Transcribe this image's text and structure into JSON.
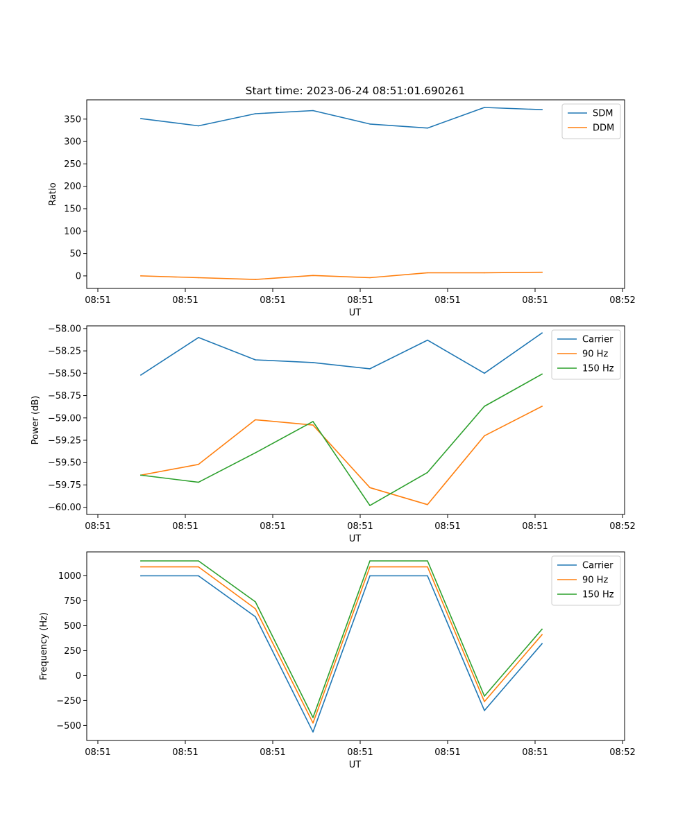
{
  "figure": {
    "title": "Start time: 2023-06-24 08:51:01.690261"
  },
  "chart_data": [
    {
      "type": "line",
      "title": "Start time: 2023-06-24 08:51:01.690261",
      "xlabel": "UT",
      "ylabel": "Ratio",
      "x_tick_labels": [
        "08:51",
        "08:51",
        "08:51",
        "08:51",
        "08:51",
        "08:51",
        "08:52"
      ],
      "y_ticks": [
        0,
        50,
        100,
        150,
        200,
        250,
        300,
        350
      ],
      "ylim": [
        -28,
        393
      ],
      "legend_position": "top-right",
      "series": [
        {
          "name": "SDM",
          "color": "#1f77b4",
          "values": [
            351,
            335,
            362,
            369,
            339,
            330,
            376,
            371
          ]
        },
        {
          "name": "DDM",
          "color": "#ff7f0e",
          "values": [
            0,
            -4,
            -8,
            1,
            -4,
            7,
            7,
            8
          ]
        }
      ]
    },
    {
      "type": "line",
      "title": "",
      "xlabel": "UT",
      "ylabel": "Power (dB)",
      "x_tick_labels": [
        "08:51",
        "08:51",
        "08:51",
        "08:51",
        "08:51",
        "08:51",
        "08:52"
      ],
      "y_ticks": [
        -60.0,
        -59.75,
        -59.5,
        -59.25,
        -59.0,
        -58.75,
        -58.5,
        -58.25,
        -58.0
      ],
      "y_tick_labels": [
        "−60.00",
        "−59.75",
        "−59.50",
        "−59.25",
        "−59.00",
        "−58.75",
        "−58.50",
        "−58.25",
        "−58.00"
      ],
      "ylim": [
        -60.08,
        -57.97
      ],
      "legend_position": "top-right",
      "series": [
        {
          "name": "Carrier",
          "color": "#1f77b4",
          "values": [
            -58.52,
            -58.1,
            -58.35,
            -58.38,
            -58.45,
            -58.13,
            -58.5,
            -58.05
          ]
        },
        {
          "name": "90 Hz",
          "color": "#ff7f0e",
          "values": [
            -59.64,
            -59.52,
            -59.02,
            -59.08,
            -59.78,
            -59.97,
            -59.2,
            -58.87
          ]
        },
        {
          "name": "150 Hz",
          "color": "#2ca02c",
          "values": [
            -59.64,
            -59.72,
            -59.39,
            -59.04,
            -59.98,
            -59.61,
            -58.87,
            -58.51
          ]
        }
      ]
    },
    {
      "type": "line",
      "title": "",
      "xlabel": "UT",
      "ylabel": "Frequency (Hz)",
      "x_tick_labels": [
        "08:51",
        "08:51",
        "08:51",
        "08:51",
        "08:51",
        "08:51",
        "08:52"
      ],
      "y_ticks": [
        -500,
        -250,
        0,
        250,
        500,
        750,
        1000
      ],
      "y_tick_labels": [
        "−500",
        "−250",
        "0",
        "250",
        "500",
        "750",
        "1000"
      ],
      "ylim": [
        -650,
        1240
      ],
      "legend_position": "top-right",
      "series": [
        {
          "name": "Carrier",
          "color": "#1f77b4",
          "values": [
            1000,
            1000,
            590,
            -565,
            1000,
            1000,
            -350,
            320
          ]
        },
        {
          "name": "90 Hz",
          "color": "#ff7f0e",
          "values": [
            1090,
            1090,
            670,
            -475,
            1090,
            1090,
            -260,
            410
          ]
        },
        {
          "name": "150 Hz",
          "color": "#2ca02c",
          "values": [
            1150,
            1150,
            740,
            -420,
            1150,
            1150,
            -205,
            465
          ]
        }
      ]
    }
  ]
}
